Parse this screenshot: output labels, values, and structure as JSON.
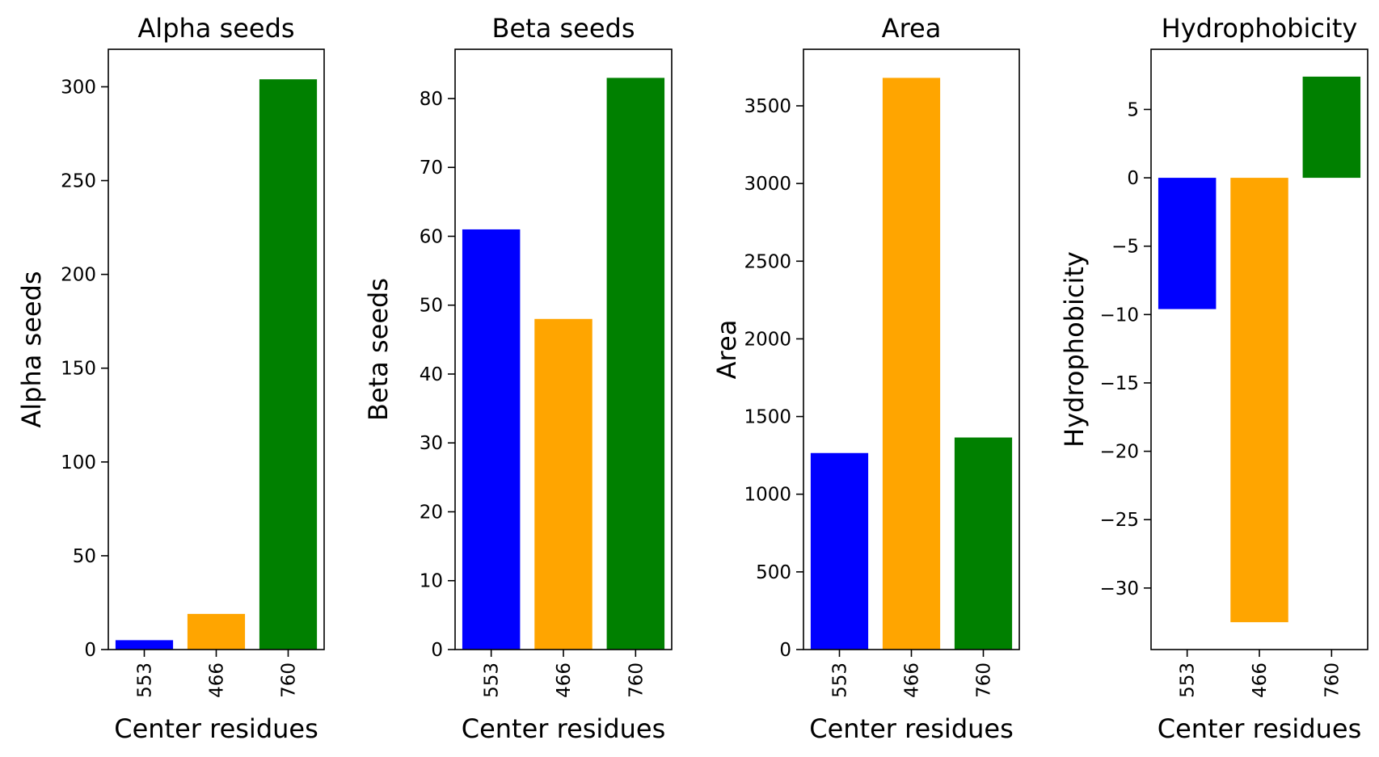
{
  "chart_data": [
    {
      "type": "bar",
      "title": "Alpha seeds",
      "xlabel": "Center residues",
      "ylabel": "Alpha seeds",
      "categories": [
        "553",
        "466",
        "760"
      ],
      "values": [
        5,
        19,
        304
      ],
      "colors": [
        "#0000ff",
        "#ffa500",
        "#008000"
      ],
      "ylim": [
        0,
        320
      ],
      "yticks": [
        0,
        50,
        100,
        150,
        200,
        250,
        300
      ],
      "grid": false,
      "legend": "none"
    },
    {
      "type": "bar",
      "title": "Beta seeds",
      "xlabel": "Center residues",
      "ylabel": "Beta seeds",
      "categories": [
        "553",
        "466",
        "760"
      ],
      "values": [
        61,
        48,
        83
      ],
      "colors": [
        "#0000ff",
        "#ffa500",
        "#008000"
      ],
      "ylim": [
        0,
        87.15
      ],
      "yticks": [
        0,
        10,
        20,
        30,
        40,
        50,
        60,
        70,
        80
      ],
      "grid": false,
      "legend": "none"
    },
    {
      "type": "bar",
      "title": "Area",
      "xlabel": "Center residues",
      "ylabel": "Area",
      "categories": [
        "553",
        "466",
        "760"
      ],
      "values": [
        1265,
        3680,
        1365
      ],
      "colors": [
        "#0000ff",
        "#ffa500",
        "#008000"
      ],
      "ylim": [
        0,
        3864
      ],
      "yticks": [
        0,
        500,
        1000,
        1500,
        2000,
        2500,
        3000,
        3500
      ],
      "grid": false,
      "legend": "none"
    },
    {
      "type": "bar",
      "title": "Hydrophobicity",
      "xlabel": "Center residues",
      "ylabel": "Hydrophobicity",
      "categories": [
        "553",
        "466",
        "760"
      ],
      "values": [
        -9.6,
        -32.5,
        7.4
      ],
      "colors": [
        "#0000ff",
        "#ffa500",
        "#008000"
      ],
      "ylim": [
        -34.5,
        9.4
      ],
      "yticks": [
        5,
        0,
        -5,
        -10,
        -15,
        -20,
        -25,
        -30
      ],
      "grid": false,
      "legend": "none"
    }
  ]
}
